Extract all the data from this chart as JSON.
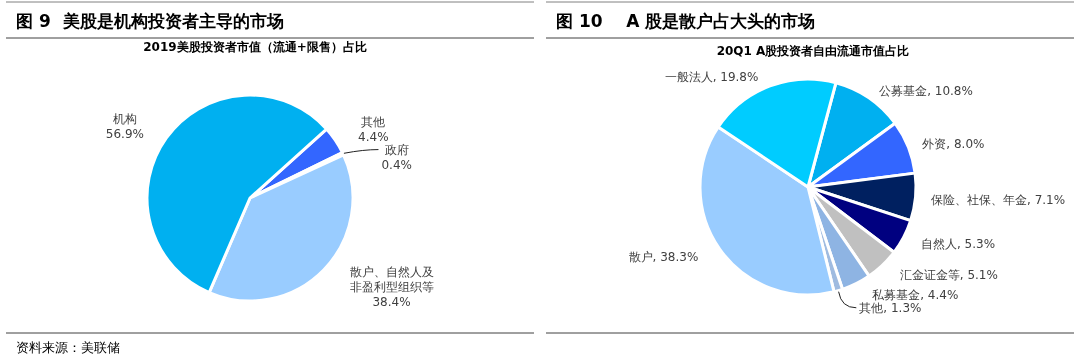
{
  "chart_data": [
    {
      "type": "pie",
      "title": "图 9  美股是机构投资者主导的市场",
      "subtitle": "2019美股投资者市值（流通+限售）占比",
      "categories": [
        "其他",
        "政府",
        "散户、自然人及非盈利型组织等",
        "机构"
      ],
      "values": [
        4.4,
        0.4,
        38.4,
        56.9
      ],
      "colors": [
        "#3366ff",
        "#002060",
        "#99ccff",
        "#00b0f0"
      ],
      "value_labels": [
        "4.4%",
        "0.4%",
        "38.4%",
        "56.9%"
      ],
      "annotations": [
        "资料来源：美联储"
      ]
    },
    {
      "type": "pie",
      "title": "图 10    A 股是散户占大头的市场",
      "subtitle": "20Q1 A股投资者自由流通市值占比",
      "categories": [
        "公募基金",
        "外资",
        "保险、社保、年金",
        "自然人",
        "汇金证金等",
        "私募基金",
        "其他",
        "散户",
        "一般法人"
      ],
      "values": [
        10.8,
        8.0,
        7.1,
        5.3,
        5.1,
        4.4,
        1.3,
        38.3,
        19.8
      ],
      "colors": [
        "#00b0f0",
        "#3366ff",
        "#002060",
        "#000080",
        "#c0c0c0",
        "#8eb4e3",
        "#9fbbe0",
        "#99ccff",
        "#00ccff"
      ],
      "value_labels": [
        ", 10.8%",
        ", 8.0%",
        ", 7.1%",
        ", 5.3%",
        ", 5.1%",
        ", 4.4%",
        ", 1.3%",
        ", 38.3%",
        ", 19.8%"
      ]
    }
  ]
}
